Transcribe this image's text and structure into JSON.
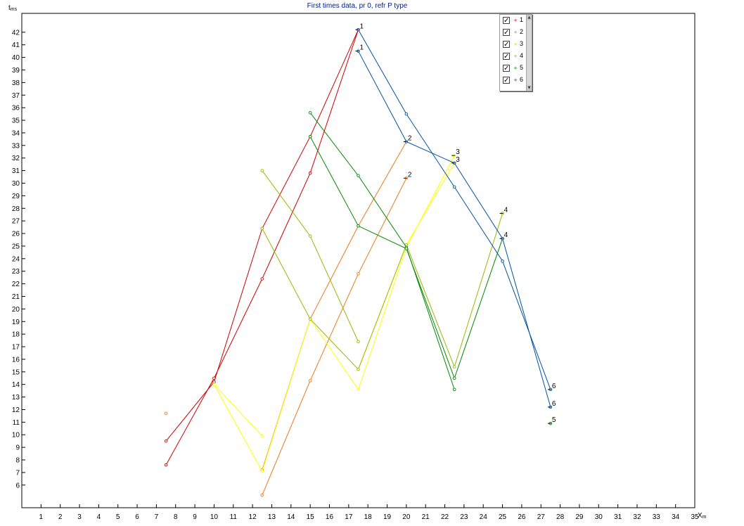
{
  "chart_data": {
    "type": "line",
    "title": "First times data, pr 0, refr P type",
    "ylabel": "t",
    "ylabel_unit": "ms",
    "xlabel": "X",
    "xlabel_unit": "m",
    "xlim": [
      0,
      35
    ],
    "ylim": [
      4.2,
      43.5
    ],
    "x_ticks": [
      1,
      2,
      3,
      4,
      5,
      6,
      7,
      8,
      9,
      10,
      11,
      12,
      13,
      14,
      15,
      16,
      17,
      18,
      19,
      20,
      21,
      22,
      23,
      24,
      25,
      26,
      27,
      28,
      29,
      30,
      31,
      32,
      33,
      34,
      35
    ],
    "y_ticks": [
      6,
      7,
      8,
      9,
      10,
      11,
      12,
      13,
      14,
      15,
      16,
      17,
      18,
      19,
      20,
      21,
      22,
      23,
      24,
      25,
      26,
      27,
      28,
      29,
      30,
      31,
      32,
      33,
      34,
      35,
      36,
      37,
      38,
      39,
      40,
      41,
      42
    ],
    "grid": false,
    "legend_position": "top-right",
    "series": [
      {
        "name": "1",
        "color": "#cc0000",
        "lines": [
          [
            [
              7.5,
              7.6
            ],
            [
              10,
              14.5
            ],
            [
              12.5,
              22.4
            ],
            [
              15,
              30.8
            ],
            [
              17.5,
              42.2
            ]
          ],
          [
            [
              7.5,
              9.5
            ],
            [
              10,
              14.2
            ],
            [
              12.5,
              26.4
            ],
            [
              15,
              33.7
            ],
            [
              17.5,
              42.2
            ]
          ]
        ],
        "end_labels": [
          {
            "text": "1",
            "x": 17.5,
            "y": 42.2
          }
        ]
      },
      {
        "name": "2",
        "color": "#e87a1e",
        "lines": [
          [
            [
              12.5,
              5.2
            ],
            [
              15,
              14.3
            ],
            [
              17.5,
              22.8
            ],
            [
              20,
              30.4
            ]
          ],
          [
            [
              12.5,
              7.2
            ],
            [
              15,
              19.2
            ],
            [
              17.5,
              26.6
            ],
            [
              20,
              33.3
            ]
          ]
        ],
        "points": [
          [
            7.5,
            11.7
          ]
        ],
        "end_labels": [
          {
            "text": "2",
            "x": 20,
            "y": 30.4
          },
          {
            "text": "2",
            "x": 20,
            "y": 33.3
          }
        ]
      },
      {
        "name": "3",
        "color": "#ffff00",
        "lines": [
          [
            [
              10,
              14.0
            ],
            [
              12.5,
              7.1
            ],
            [
              15,
              19.2
            ],
            [
              17.5,
              13.6
            ],
            [
              20,
              24.9
            ],
            [
              22.5,
              32.2
            ]
          ],
          [
            [
              10,
              14.0
            ],
            [
              12.5,
              9.9
            ]
          ],
          [
            [
              17.5,
              15.2
            ],
            [
              20,
              25.1
            ],
            [
              22.5,
              31.6
            ]
          ]
        ],
        "end_labels": [
          {
            "text": "3",
            "x": 22.5,
            "y": 32.2
          },
          {
            "text": "3",
            "x": 22.5,
            "y": 31.6
          }
        ]
      },
      {
        "name": "4",
        "color": "#9ab700",
        "lines": [
          [
            [
              12.5,
              31.0
            ],
            [
              15,
              25.8
            ],
            [
              17.5,
              17.4
            ]
          ],
          [
            [
              12.5,
              26.4
            ],
            [
              15,
              19.2
            ],
            [
              17.5,
              15.2
            ],
            [
              20,
              25.1
            ],
            [
              22.5,
              15.4
            ],
            [
              25,
              27.6
            ]
          ]
        ],
        "end_labels": [
          {
            "text": "4",
            "x": 25,
            "y": 27.6
          }
        ]
      },
      {
        "name": "5",
        "color": "#008800",
        "lines": [
          [
            [
              15,
              35.6
            ],
            [
              17.5,
              30.6
            ],
            [
              20,
              24.9
            ],
            [
              22.5,
              13.6
            ]
          ],
          [
            [
              15,
              33.7
            ],
            [
              17.5,
              26.6
            ],
            [
              20,
              24.8
            ],
            [
              22.5,
              14.5
            ],
            [
              25,
              25.6
            ]
          ]
        ],
        "points": [
          [
            27.5,
            10.9
          ]
        ],
        "end_labels": [
          {
            "text": "4",
            "x": 25,
            "y": 25.6
          },
          {
            "text": "5",
            "x": 27.5,
            "y": 10.9
          }
        ]
      },
      {
        "name": "6",
        "color": "#0050a0",
        "lines": [
          [
            [
              17.5,
              42.2
            ],
            [
              20,
              35.5
            ],
            [
              22.5,
              29.7
            ],
            [
              25,
              23.8
            ],
            [
              27.5,
              13.6
            ]
          ],
          [
            [
              17.5,
              40.5
            ],
            [
              20,
              33.3
            ],
            [
              22.5,
              31.6
            ],
            [
              25,
              25.6
            ],
            [
              27.5,
              12.2
            ]
          ]
        ],
        "end_labels": [
          {
            "text": "1",
            "x": 17.5,
            "y": 40.5
          },
          {
            "text": "6",
            "x": 27.5,
            "y": 13.6
          },
          {
            "text": "6",
            "x": 27.5,
            "y": 12.2
          }
        ]
      }
    ]
  },
  "legend": {
    "items": [
      {
        "label": "1",
        "checked": true,
        "marker": "+",
        "color": "#cc0000"
      },
      {
        "label": "2",
        "checked": true,
        "marker": "+",
        "color": "#e87a1e"
      },
      {
        "label": "3",
        "checked": true,
        "marker": "+",
        "color": "#e0d000"
      },
      {
        "label": "4",
        "checked": true,
        "marker": "+",
        "color": "#9ab700"
      },
      {
        "label": "5",
        "checked": true,
        "marker": "+",
        "color": "#008800"
      },
      {
        "label": "6",
        "checked": true,
        "marker": "+",
        "color": "#0050a0"
      }
    ],
    "check_glyph": "✓",
    "scroll_up_glyph": "▲",
    "scroll_down_glyph": "▼"
  }
}
